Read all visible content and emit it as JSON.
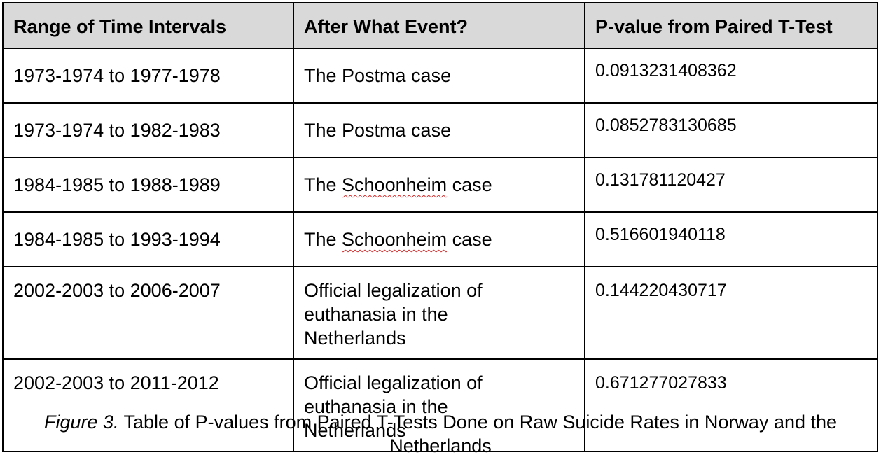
{
  "table": {
    "headers": [
      "Range of Time Intervals",
      "After What Event?",
      "P-value from Paired T-Test"
    ],
    "rows": [
      {
        "range": "1973-1974 to 1977-1978",
        "event_pre": "The Postma case",
        "event_flag": "",
        "event_post": "",
        "pvalue": "0.0913231408362"
      },
      {
        "range": "1973-1974 to 1982-1983",
        "event_pre": "The Postma case",
        "event_flag": "",
        "event_post": "",
        "pvalue": "0.0852783130685"
      },
      {
        "range": "1984-1985 to 1988-1989",
        "event_pre": "The ",
        "event_flag": "Schoonheim",
        "event_post": " case",
        "pvalue": "0.131781120427"
      },
      {
        "range": "1984-1985 to 1993-1994",
        "event_pre": "The ",
        "event_flag": "Schoonheim",
        "event_post": " case",
        "pvalue": "0.516601940118"
      },
      {
        "range": "2002-2003 to 2006-2007",
        "event_lines": [
          "Official legalization of",
          "euthanasia in the",
          "Netherlands"
        ],
        "pvalue": "0.144220430717"
      },
      {
        "range": "2002-2003 to 2011-2012",
        "event_lines": [
          "Official legalization of",
          "euthanasia in the",
          "Netherlands"
        ],
        "pvalue": "0.671277027833"
      }
    ]
  },
  "caption": {
    "figure_label": "Figure 3.",
    "line1": " Table of P-values from Paired T-Tests Done on Raw Suicide Rates in Norway and the",
    "line2": "Netherlands"
  },
  "colors": {
    "header_bg": "#d9d9d9",
    "border": "#000000",
    "spellcheck_underline": "#d12a2a"
  }
}
